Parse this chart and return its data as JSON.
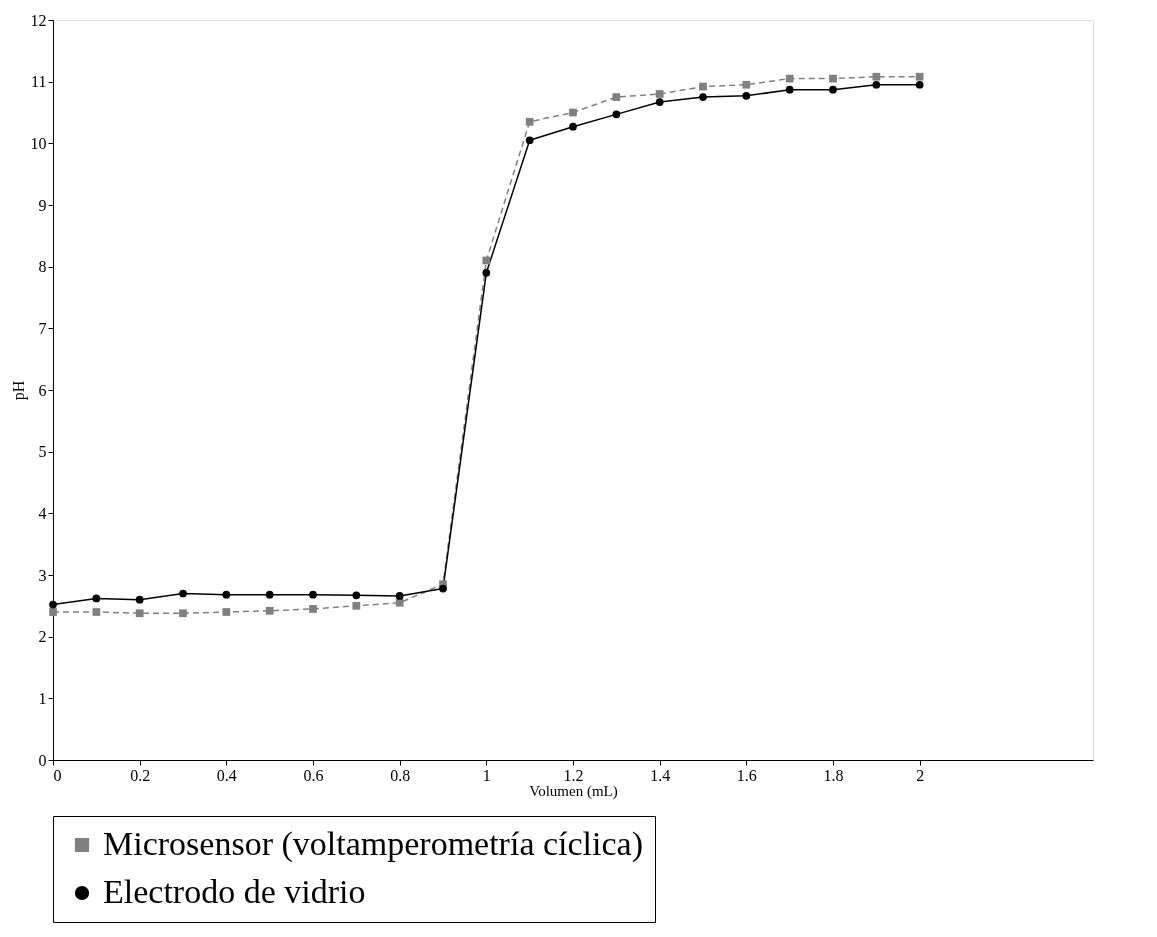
{
  "chart_data": {
    "type": "line",
    "xlabel": "Volumen (mL)",
    "ylabel": "pH",
    "x": [
      0,
      0.1,
      0.2,
      0.3,
      0.4,
      0.5,
      0.6,
      0.7,
      0.8,
      0.9,
      1.0,
      1.1,
      1.2,
      1.3,
      1.4,
      1.5,
      1.6,
      1.7,
      1.8,
      1.9,
      2.0
    ],
    "series": [
      {
        "name": "Microsensor (voltamperometría cíclica)",
        "color": "#808080",
        "marker": "square",
        "line_style": "dashed",
        "values": [
          2.4,
          2.4,
          2.38,
          2.38,
          2.4,
          2.42,
          2.45,
          2.5,
          2.55,
          2.85,
          8.1,
          10.35,
          10.5,
          10.75,
          10.8,
          10.92,
          10.95,
          11.05,
          11.05,
          11.08,
          11.08
        ]
      },
      {
        "name": "Electrodo de vidrio",
        "color": "#000000",
        "marker": "circle",
        "line_style": "solid",
        "values": [
          2.52,
          2.62,
          2.6,
          2.7,
          2.68,
          2.68,
          2.68,
          2.67,
          2.66,
          2.78,
          7.9,
          10.05,
          10.27,
          10.47,
          10.67,
          10.75,
          10.77,
          10.87,
          10.87,
          10.95,
          10.95
        ]
      }
    ],
    "xlim": [
      0,
      2.4
    ],
    "xticks": [
      0,
      0.2,
      0.4,
      0.6,
      0.8,
      1,
      1.2,
      1.4,
      1.6,
      1.8,
      2
    ],
    "ylim": [
      0,
      12
    ],
    "yticks": [
      0,
      1,
      2,
      3,
      4,
      5,
      6,
      7,
      8,
      9,
      10,
      11,
      12
    ],
    "grid": false,
    "legend": "bottom"
  }
}
